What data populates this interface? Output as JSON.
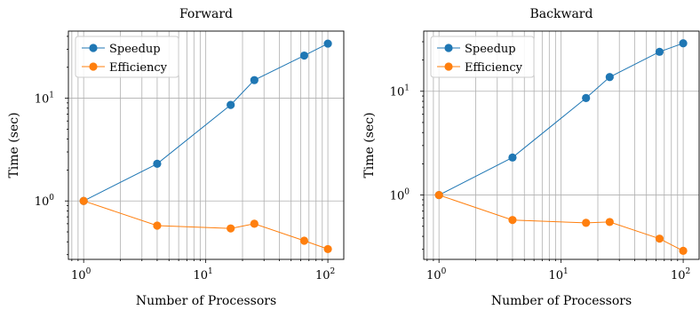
{
  "chart_data": [
    {
      "type": "line",
      "title": "Forward",
      "xlabel": "Number of Processors",
      "ylabel": "Time (sec)",
      "xscale": "log",
      "yscale": "log",
      "xlim": [
        0.75,
        135
      ],
      "ylim": [
        0.27,
        45
      ],
      "x": [
        1,
        4,
        16,
        25,
        64,
        100
      ],
      "x_ticks": [
        {
          "base": "10",
          "exp": "0",
          "value": 1
        },
        {
          "base": "10",
          "exp": "1",
          "value": 10
        },
        {
          "base": "10",
          "exp": "2",
          "value": 100
        }
      ],
      "y_ticks": [
        {
          "base": "10",
          "exp": "0",
          "value": 1
        },
        {
          "base": "10",
          "exp": "1",
          "value": 10
        }
      ],
      "grid": true,
      "legend_position": "top-left",
      "series": [
        {
          "name": "Speedup",
          "color": "#1f77b4",
          "values": [
            1.0,
            2.3,
            8.6,
            15.0,
            26.0,
            34.0
          ]
        },
        {
          "name": "Efficiency",
          "color": "#ff7f0e",
          "values": [
            1.0,
            0.575,
            0.54,
            0.6,
            0.41,
            0.34
          ]
        }
      ]
    },
    {
      "type": "line",
      "title": "Backward",
      "xlabel": "Number of Processors",
      "ylabel": "Time (sec)",
      "xscale": "log",
      "yscale": "log",
      "xlim": [
        0.75,
        135
      ],
      "ylim": [
        0.24,
        38
      ],
      "x": [
        1,
        4,
        16,
        25,
        64,
        100
      ],
      "x_ticks": [
        {
          "base": "10",
          "exp": "0",
          "value": 1
        },
        {
          "base": "10",
          "exp": "1",
          "value": 10
        },
        {
          "base": "10",
          "exp": "2",
          "value": 100
        }
      ],
      "y_ticks": [
        {
          "base": "10",
          "exp": "0",
          "value": 1
        },
        {
          "base": "10",
          "exp": "1",
          "value": 10
        }
      ],
      "grid": true,
      "legend_position": "top-left",
      "series": [
        {
          "name": "Speedup",
          "color": "#1f77b4",
          "values": [
            1.0,
            2.3,
            8.6,
            13.7,
            24.0,
            29.0
          ]
        },
        {
          "name": "Efficiency",
          "color": "#ff7f0e",
          "values": [
            1.0,
            0.575,
            0.54,
            0.55,
            0.38,
            0.29
          ]
        }
      ]
    }
  ]
}
